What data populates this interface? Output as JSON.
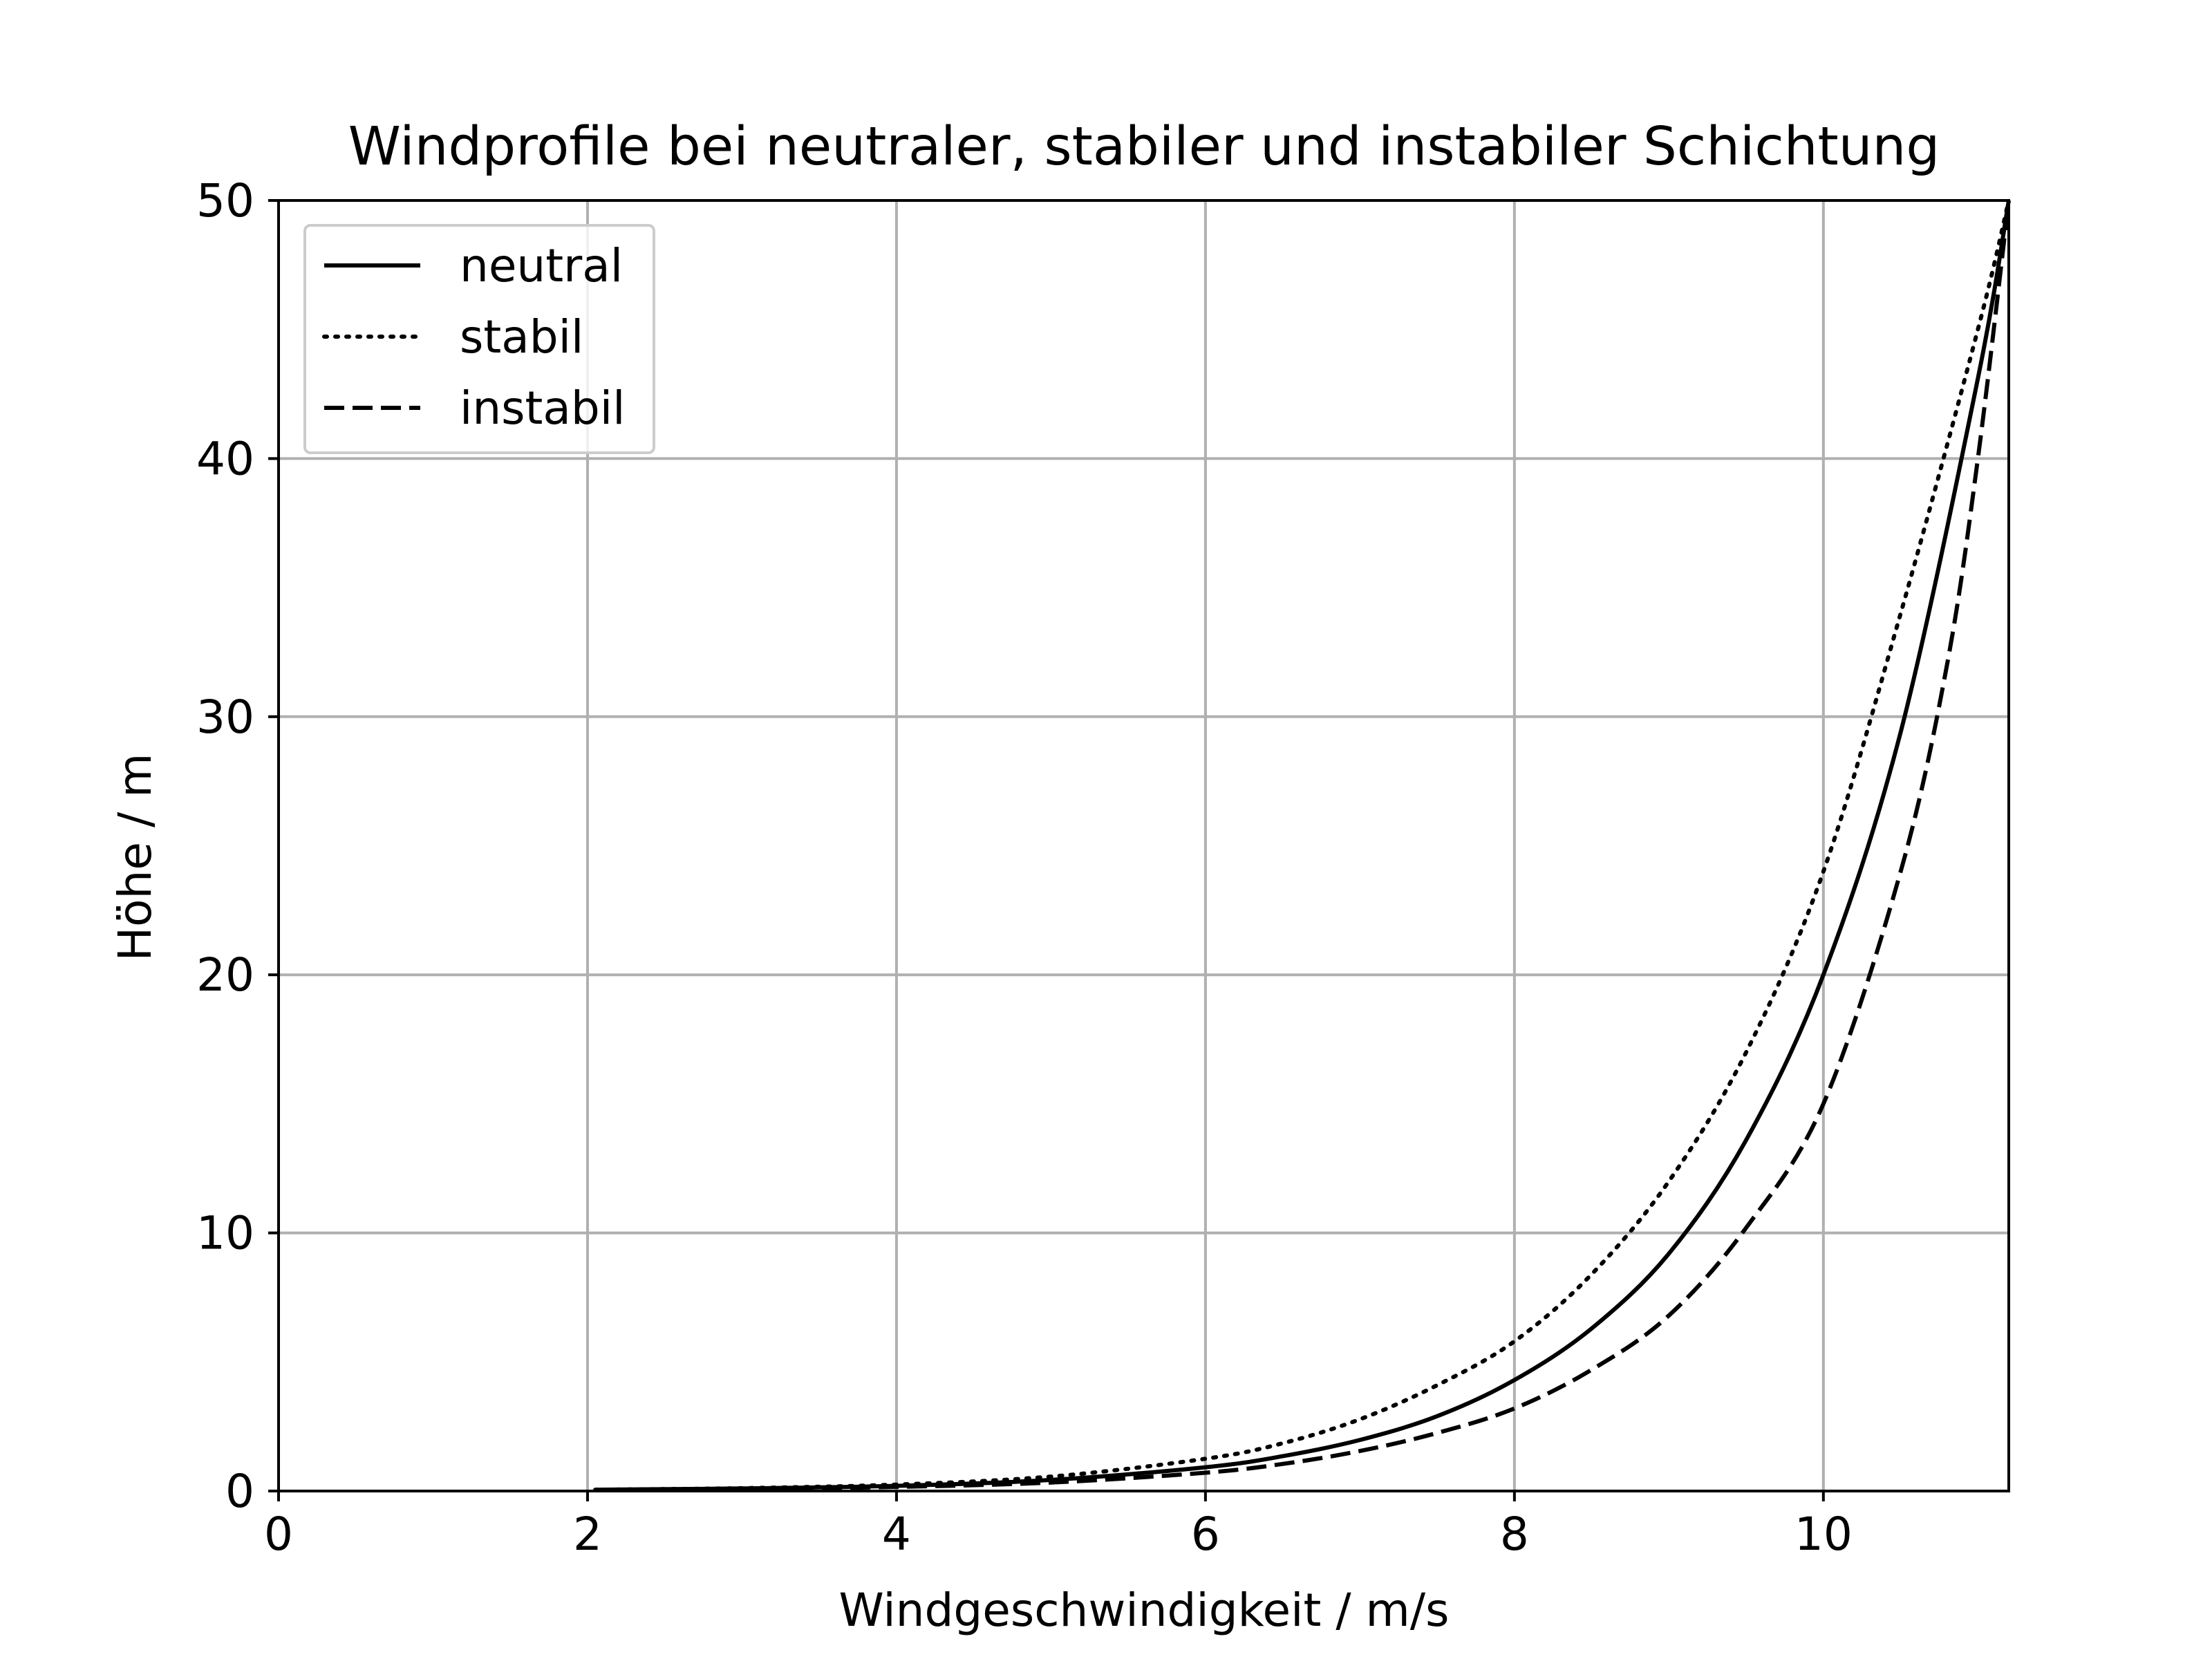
{
  "chart_data": {
    "type": "line",
    "title": "Windprofile bei neutraler, stabiler und instabiler Schichtung",
    "xlabel": "Windgeschwindigkeit / m/s",
    "ylabel": "Höhe / m",
    "xlim": [
      0,
      11.2
    ],
    "ylim": [
      0,
      50
    ],
    "xticks": [
      0,
      2,
      4,
      6,
      8,
      10
    ],
    "yticks": [
      0,
      10,
      20,
      30,
      40,
      50
    ],
    "grid": true,
    "legend_position": "top-left",
    "colors": {
      "line": "#000000",
      "grid": "#b0b0b0",
      "legend_border": "#cccccc"
    },
    "series": [
      {
        "name": "neutral",
        "style": "solid",
        "points": [
          [
            2.05,
            0.05
          ],
          [
            3.0,
            0.1
          ],
          [
            4.0,
            0.2
          ],
          [
            5.0,
            0.43
          ],
          [
            6.0,
            0.92
          ],
          [
            6.5,
            1.35
          ],
          [
            7.0,
            1.98
          ],
          [
            7.5,
            2.9
          ],
          [
            8.0,
            4.3
          ],
          [
            8.5,
            6.3
          ],
          [
            9.0,
            9.2
          ],
          [
            9.5,
            13.6
          ],
          [
            10.0,
            20.0
          ],
          [
            10.5,
            29.4
          ],
          [
            11.0,
            43.1
          ],
          [
            11.2,
            50.0
          ]
        ]
      },
      {
        "name": "stabil",
        "style": "dotted",
        "points": [
          [
            2.05,
            0.05
          ],
          [
            3.0,
            0.11
          ],
          [
            4.0,
            0.25
          ],
          [
            5.0,
            0.56
          ],
          [
            6.0,
            1.25
          ],
          [
            6.5,
            1.85
          ],
          [
            7.0,
            2.78
          ],
          [
            7.5,
            4.1
          ],
          [
            8.0,
            5.8
          ],
          [
            8.5,
            8.4
          ],
          [
            9.0,
            12.0
          ],
          [
            9.5,
            17.0
          ],
          [
            10.0,
            24.0
          ],
          [
            10.5,
            34.0
          ],
          [
            11.0,
            45.0
          ],
          [
            11.2,
            50.0
          ]
        ]
      },
      {
        "name": "instabil",
        "style": "dashed",
        "points": [
          [
            2.05,
            0.04
          ],
          [
            3.0,
            0.08
          ],
          [
            4.0,
            0.16
          ],
          [
            5.0,
            0.33
          ],
          [
            6.0,
            0.71
          ],
          [
            6.5,
            1.05
          ],
          [
            7.0,
            1.55
          ],
          [
            7.5,
            2.25
          ],
          [
            8.0,
            3.2
          ],
          [
            8.5,
            4.7
          ],
          [
            9.0,
            6.8
          ],
          [
            9.5,
            10.2
          ],
          [
            10.0,
            15.0
          ],
          [
            10.5,
            24.0
          ],
          [
            10.8,
            32.0
          ],
          [
            11.0,
            40.0
          ],
          [
            11.2,
            50.0
          ]
        ]
      }
    ]
  }
}
